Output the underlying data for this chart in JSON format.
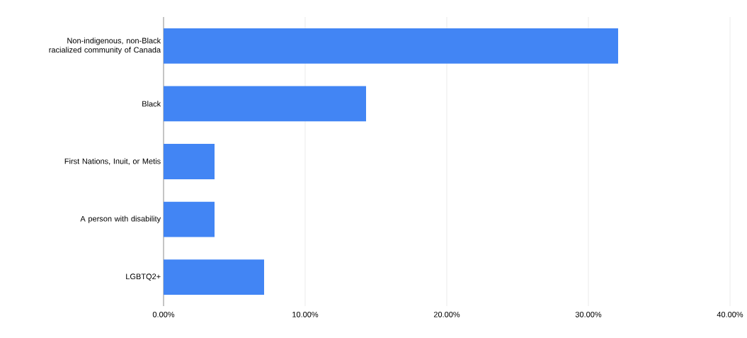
{
  "chart_data": {
    "type": "bar",
    "orientation": "horizontal",
    "categories": [
      "Non-indigenous, non-Black racialized community of Canada",
      "Black",
      "First Nations, Inuit, or Metis",
      "A person with disability",
      "LGBTQ2+"
    ],
    "values": [
      32.1,
      14.3,
      3.6,
      3.6,
      7.1
    ],
    "color": "#4285f4",
    "xlim": [
      0,
      40
    ],
    "xticks": [
      {
        "value": 0,
        "label": "0.00%"
      },
      {
        "value": 10,
        "label": "10.00%"
      },
      {
        "value": 20,
        "label": "20.00%"
      },
      {
        "value": 30,
        "label": "30.00%"
      },
      {
        "value": 40,
        "label": "40.00%"
      }
    ],
    "grid": "x"
  }
}
